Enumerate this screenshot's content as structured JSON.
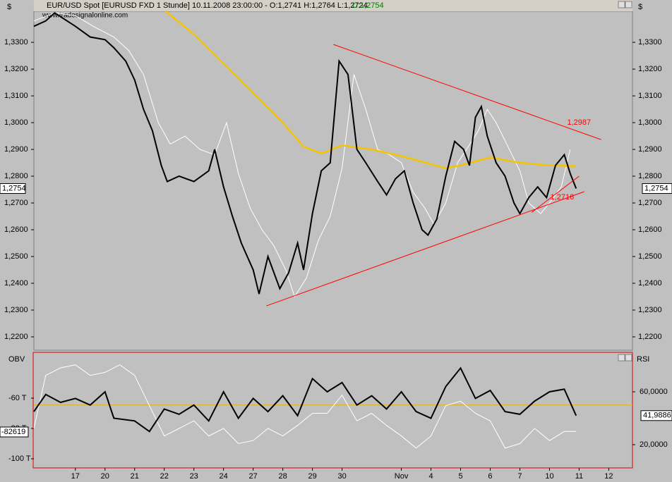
{
  "header": {
    "title": "EUR/USD Spot [EURUSD FXD  1 Stunde] 10.11.2008 23:00:00 - O:1,2741 H:1,2764 L:1,2724",
    "close": "C:1,2754",
    "watermark": "www.tradesignalonline.com",
    "currency_left": "$",
    "currency_right": "$"
  },
  "chart_data": [
    {
      "type": "line",
      "xlim": [
        -0.4,
        19.8
      ],
      "ylim": [
        1.215,
        1.3416
      ],
      "yticks": [
        {
          "value": 1.22,
          "label": "1,2200"
        },
        {
          "value": 1.23,
          "label": "1,2300"
        },
        {
          "value": 1.24,
          "label": "1,2400"
        },
        {
          "value": 1.25,
          "label": "1,2500"
        },
        {
          "value": 1.26,
          "label": "1,2600"
        },
        {
          "value": 1.27,
          "label": "1,2700"
        },
        {
          "value": 1.28,
          "label": "1,2800"
        },
        {
          "value": 1.29,
          "label": "1,2900"
        },
        {
          "value": 1.3,
          "label": "1,3000"
        },
        {
          "value": 1.31,
          "label": "1,3100"
        },
        {
          "value": 1.32,
          "label": "1,3200"
        },
        {
          "value": 1.33,
          "label": "1,3300"
        }
      ],
      "last_value": {
        "value": 1.2754,
        "label": "1,2754"
      },
      "series": [
        {
          "color": "#ffffff",
          "x": [
            -0.4,
            0.3,
            1,
            1.6,
            2.3,
            2.8,
            3.3,
            3.8,
            4.2,
            4.7,
            5.2,
            5.7,
            6.1,
            6.5,
            6.9,
            7.3,
            7.7,
            8.1,
            8.4,
            8.8,
            9.2,
            9.6,
            10.0,
            10.4,
            10.8,
            11.2,
            11.6,
            12.0,
            12.4,
            12.8,
            13.1,
            13.5,
            13.9,
            14.2,
            14.6,
            14.9,
            15.2,
            15.6,
            16.0,
            16.3,
            16.7,
            17.0,
            17.4,
            17.7
          ],
          "values": [
            1.338,
            1.341,
            1.34,
            1.336,
            1.332,
            1.327,
            1.318,
            1.3,
            1.292,
            1.295,
            1.29,
            1.288,
            1.3,
            1.281,
            1.268,
            1.26,
            1.254,
            1.245,
            1.235,
            1.242,
            1.256,
            1.265,
            1.283,
            1.318,
            1.305,
            1.29,
            1.288,
            1.285,
            1.274,
            1.268,
            1.262,
            1.27,
            1.285,
            1.29,
            1.297,
            1.305,
            1.3,
            1.291,
            1.282,
            1.27,
            1.266,
            1.27,
            1.276,
            1.29
          ]
        },
        {
          "color": "#f5c400",
          "x": [
            4.05,
            5,
            6,
            7,
            8,
            8.7,
            9.3,
            10,
            11,
            12,
            13,
            13.5,
            14,
            15,
            16,
            17,
            17.9
          ],
          "values": [
            1.3416,
            1.333,
            1.322,
            1.311,
            1.3,
            1.291,
            1.2885,
            1.2915,
            1.29,
            1.2875,
            1.2845,
            1.283,
            1.284,
            1.287,
            1.285,
            1.284,
            1.2838
          ]
        },
        {
          "color": "#000000",
          "x": [
            -0.4,
            0,
            0.3,
            1,
            1.5,
            2,
            2.3,
            2.7,
            3,
            3.3,
            3.6,
            3.9,
            4.1,
            4.5,
            5,
            5.5,
            5.7,
            6,
            6.3,
            6.6,
            7,
            7.2,
            7.5,
            7.9,
            8.2,
            8.5,
            8.7,
            9,
            9.3,
            9.6,
            9.9,
            10.2,
            10.5,
            10.8,
            11.2,
            11.5,
            11.8,
            12.1,
            12.4,
            12.7,
            12.9,
            13.2,
            13.5,
            13.8,
            14.1,
            14.3,
            14.5,
            14.7,
            14.9,
            15.2,
            15.5,
            15.8,
            16,
            16.3,
            16.6,
            16.9,
            17.2,
            17.5,
            17.7,
            17.9
          ],
          "values": [
            1.336,
            1.338,
            1.341,
            1.336,
            1.332,
            1.331,
            1.328,
            1.323,
            1.316,
            1.305,
            1.297,
            1.284,
            1.278,
            1.28,
            1.278,
            1.282,
            1.29,
            1.276,
            1.265,
            1.255,
            1.245,
            1.236,
            1.25,
            1.238,
            1.244,
            1.255,
            1.245,
            1.266,
            1.282,
            1.285,
            1.323,
            1.318,
            1.29,
            1.285,
            1.278,
            1.273,
            1.279,
            1.282,
            1.27,
            1.26,
            1.258,
            1.264,
            1.28,
            1.293,
            1.29,
            1.284,
            1.302,
            1.306,
            1.295,
            1.285,
            1.28,
            1.27,
            1.266,
            1.272,
            1.276,
            1.272,
            1.284,
            1.288,
            1.281,
            1.2754
          ]
        }
      ],
      "trendlines": [
        {
          "color": "#ff0000",
          "x": [
            9.71,
            18.74
          ],
          "values": [
            1.32921,
            1.29368
          ],
          "label": "1,2987"
        },
        {
          "color": "#ff0000",
          "x": [
            7.45,
            18.17
          ],
          "values": [
            1.23158,
            1.27421
          ],
          "label": "1,2716"
        },
        {
          "color": "#ff0000",
          "x": [
            16.4,
            18.0
          ],
          "values": [
            1.2665,
            1.28
          ]
        }
      ]
    },
    {
      "type": "line",
      "xlim": [
        -0.4,
        19.8
      ],
      "xticks": [
        {
          "value": 1,
          "label": "17"
        },
        {
          "value": 2,
          "label": "20"
        },
        {
          "value": 3,
          "label": "21"
        },
        {
          "value": 4,
          "label": "22"
        },
        {
          "value": 5,
          "label": "23"
        },
        {
          "value": 6,
          "label": "24"
        },
        {
          "value": 7,
          "label": "27"
        },
        {
          "value": 8,
          "label": "28"
        },
        {
          "value": 9,
          "label": "29"
        },
        {
          "value": 10,
          "label": "30"
        },
        {
          "value": 12,
          "label": "Nov"
        },
        {
          "value": 13,
          "label": "4"
        },
        {
          "value": 14,
          "label": "5"
        },
        {
          "value": 15,
          "label": "6"
        },
        {
          "value": 16,
          "label": "7"
        },
        {
          "value": 17,
          "label": "10"
        },
        {
          "value": 18,
          "label": "11"
        },
        {
          "value": 19,
          "label": "12"
        }
      ],
      "ylabel": "OBV",
      "y2label": "RSI",
      "ylim": [
        -106.05,
        -29.77
      ],
      "yticks": [
        {
          "value": -60,
          "label": "-60 T"
        },
        {
          "value": -80,
          "label": "-80 T"
        },
        {
          "value": -100,
          "label": "-100 T"
        }
      ],
      "y2lim": [
        2.4,
        89.87
      ],
      "y2ticks": [
        {
          "value": 60,
          "label": "60,0000"
        },
        {
          "value": 20,
          "label": "20,0000"
        }
      ],
      "last_value_y": "-82619",
      "last_value_y2": {
        "value": 41.9886,
        "label": "41,9886"
      },
      "reference_line": {
        "value": 50,
        "axis": "y2",
        "color": "#e8b400"
      },
      "series": [
        {
          "color": "#ffffff",
          "x": [
            -0.4,
            0,
            0.5,
            1,
            1.5,
            2,
            2.5,
            3,
            3.5,
            4,
            4.5,
            5,
            5.5,
            6,
            6.5,
            7,
            7.5,
            8,
            8.5,
            9,
            9.5,
            10,
            10.5,
            11,
            11.5,
            12,
            12.5,
            13,
            13.5,
            14,
            14.5,
            15,
            15.5,
            16,
            16.5,
            17,
            17.5,
            17.9
          ],
          "values": [
            -80,
            -45,
            -40,
            -38,
            -45,
            -43,
            -38,
            -45,
            -65,
            -85,
            -80,
            -75,
            -85,
            -80,
            -90,
            -88,
            -80,
            -85,
            -78,
            -70,
            -70,
            -58,
            -75,
            -70,
            -78,
            -85,
            -93,
            -85,
            -65,
            -62,
            -70,
            -75,
            -93,
            -90,
            -80,
            -88,
            -82,
            -82
          ]
        },
        {
          "color": "#000000",
          "axis": "y2",
          "x": [
            -0.4,
            0,
            0.5,
            1,
            1.5,
            2,
            2.3,
            3,
            3.5,
            4,
            4.5,
            5,
            5.5,
            6,
            6.5,
            7,
            7.5,
            8,
            8.5,
            9,
            9.5,
            10,
            10.5,
            11,
            11.5,
            12,
            12.5,
            13,
            13.5,
            14,
            14.5,
            15,
            15.5,
            16,
            16.5,
            17,
            17.5,
            17.9
          ],
          "values": [
            45,
            58,
            52,
            55,
            50,
            60,
            40,
            38,
            30,
            47,
            43,
            50,
            38,
            60,
            40,
            55,
            45,
            57,
            42,
            70,
            60,
            67,
            50,
            57,
            47,
            60,
            45,
            40,
            64,
            78,
            55,
            61,
            45,
            43,
            53,
            60,
            62,
            42
          ]
        }
      ]
    }
  ]
}
